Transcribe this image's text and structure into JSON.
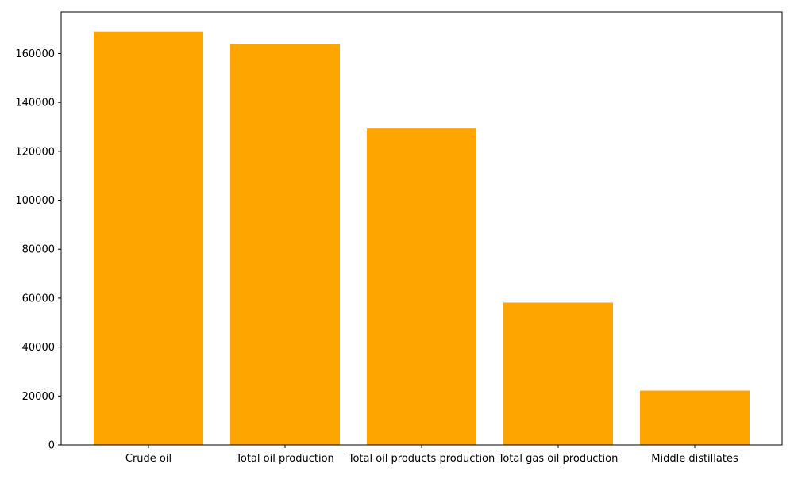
{
  "chart_data": {
    "type": "bar",
    "title": "",
    "xlabel": "",
    "ylabel": "",
    "categories": [
      "Crude oil",
      "Total oil production",
      "Total oil products production",
      "Total gas oil production",
      "Middle distillates"
    ],
    "values": [
      169000,
      163800,
      129300,
      58200,
      22200
    ],
    "ylim": [
      0,
      177000
    ],
    "yticks": [
      0,
      20000,
      40000,
      60000,
      80000,
      100000,
      120000,
      140000,
      160000
    ],
    "grid": false,
    "legend": "none",
    "bar_color": "#FFA500",
    "axis_color": "#000000"
  }
}
